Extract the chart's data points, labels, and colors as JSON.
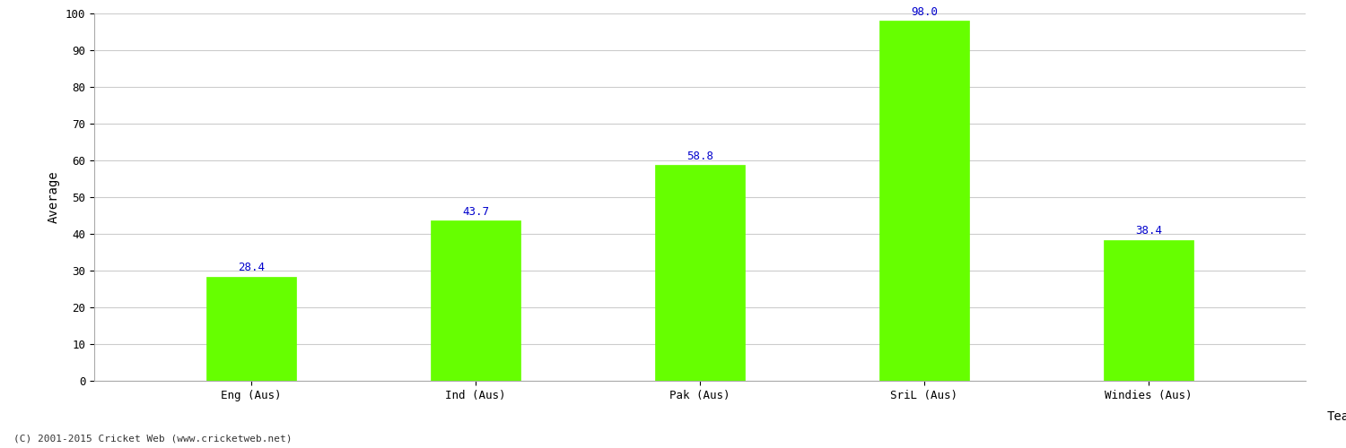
{
  "categories": [
    "Eng (Aus)",
    "Ind (Aus)",
    "Pak (Aus)",
    "SriL (Aus)",
    "Windies (Aus)"
  ],
  "values": [
    28.4,
    43.7,
    58.8,
    98.0,
    38.4
  ],
  "bar_color": "#66ff00",
  "bar_edge_color": "#66ff00",
  "value_color": "#0000cc",
  "ylabel": "Average",
  "xlabel": "Team",
  "ylim": [
    0,
    100
  ],
  "yticks": [
    0,
    10,
    20,
    30,
    40,
    50,
    60,
    70,
    80,
    90,
    100
  ],
  "grid_color": "#cccccc",
  "bg_color": "#ffffff",
  "font_size_ticks": 9,
  "font_size_labels": 10,
  "font_size_values": 9,
  "footer_text": "(C) 2001-2015 Cricket Web (www.cricketweb.net)",
  "footer_color": "#333333",
  "footer_fontsize": 8,
  "bar_width": 0.4
}
